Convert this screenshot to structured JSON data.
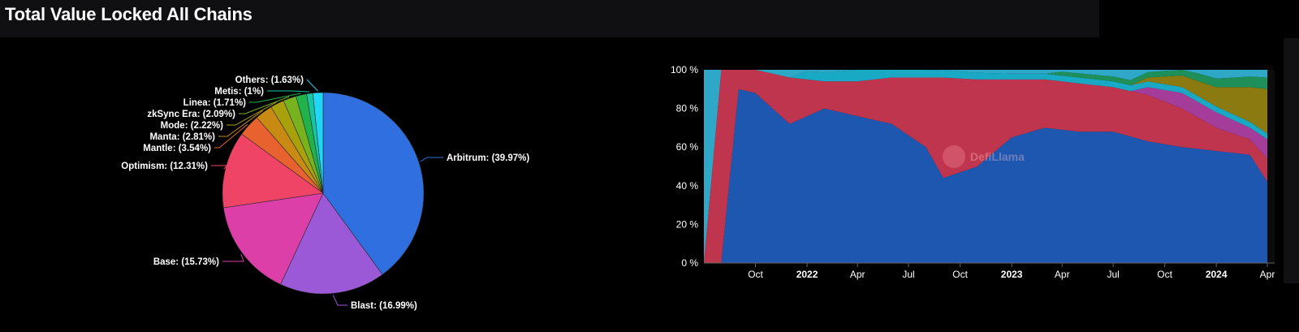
{
  "page": {
    "title": "Total Value Locked All Chains"
  },
  "chart_data": [
    {
      "type": "pie",
      "slices": [
        {
          "label": "Arbitrum: (39.97%)",
          "value": 39.97,
          "color": "#2f6fe0"
        },
        {
          "label": "Blast: (16.99%)",
          "value": 16.99,
          "color": "#9b59d8"
        },
        {
          "label": "Base: (15.73%)",
          "value": 15.73,
          "color": "#dd3fa8"
        },
        {
          "label": "Optimism: (12.31%)",
          "value": 12.31,
          "color": "#f04466"
        },
        {
          "label": "Mantle: (3.54%)",
          "value": 3.54,
          "color": "#e8622f"
        },
        {
          "label": "Manta: (2.81%)",
          "value": 2.81,
          "color": "#c98a14"
        },
        {
          "label": "Mode: (2.22%)",
          "value": 2.22,
          "color": "#a9a10c"
        },
        {
          "label": "zkSync Era: (2.09%)",
          "value": 2.09,
          "color": "#78b21e"
        },
        {
          "label": "Linea: (1.71%)",
          "value": 1.71,
          "color": "#22b24c"
        },
        {
          "label": "Metis: (1%)",
          "value": 1.0,
          "color": "#16c6a2"
        },
        {
          "label": "Others: (1.63%)",
          "value": 1.63,
          "color": "#1fd6f5"
        }
      ]
    },
    {
      "type": "area",
      "stacked_percent": true,
      "x_tick_labels": [
        "Oct",
        "2022",
        "Apr",
        "Jul",
        "Oct",
        "2023",
        "Apr",
        "Jul",
        "Oct",
        "2024",
        "Apr"
      ],
      "bold_x_ticks": [
        "2022",
        "2023",
        "2024"
      ],
      "y_tick_labels": [
        "0 %",
        "20 %",
        "40 %",
        "60 %",
        "80 %",
        "100 %"
      ],
      "ylim": [
        0,
        100
      ],
      "watermark": "DefiLlama",
      "series": [
        {
          "color": "#1d57b0",
          "x": [
            "2021-08",
            "2021-09",
            "2021-10",
            "2021-12",
            "2022-02",
            "2022-04",
            "2022-06",
            "2022-08",
            "2022-09",
            "2022-11",
            "2023-01",
            "2023-03",
            "2023-05",
            "2023-07",
            "2023-09",
            "2023-11",
            "2024-01",
            "2024-03",
            "2024-04"
          ],
          "y": [
            0,
            90,
            88,
            72,
            80,
            76,
            72,
            60,
            44,
            50,
            65,
            70,
            68,
            68,
            63,
            60,
            58,
            56,
            42
          ]
        },
        {
          "color": "#c0354e",
          "x": [
            "2021-08",
            "2021-09",
            "2021-10",
            "2021-12",
            "2022-02",
            "2022-04",
            "2022-06",
            "2022-08",
            "2022-09",
            "2022-11",
            "2023-01",
            "2023-03",
            "2023-05",
            "2023-07",
            "2023-09",
            "2023-11",
            "2024-01",
            "2024-03",
            "2024-04"
          ],
          "y": [
            100,
            10,
            12,
            24,
            14,
            18,
            24,
            36,
            52,
            45,
            30,
            25,
            25,
            23,
            24,
            20,
            12,
            8,
            12
          ]
        },
        {
          "color": "#a43c9a",
          "x": [
            "2023-09",
            "2023-11",
            "2024-01",
            "2024-03",
            "2024-04"
          ],
          "y": [
            4,
            8,
            8,
            6,
            10
          ]
        },
        {
          "color": "#1aa9c4",
          "x": [
            "2022-01",
            "2022-04",
            "2022-08",
            "2023-01",
            "2023-05",
            "2024-04"
          ],
          "y": [
            4,
            6,
            4,
            3,
            3,
            3
          ]
        },
        {
          "color": "#8a7a10",
          "x": [
            "2023-09",
            "2024-01",
            "2024-03",
            "2024-04"
          ],
          "y": [
            2,
            10,
            18,
            23
          ]
        },
        {
          "color": "#1e8f58",
          "x": [
            "2023-04",
            "2023-10",
            "2024-04"
          ],
          "y": [
            2,
            3,
            6
          ]
        }
      ]
    }
  ]
}
